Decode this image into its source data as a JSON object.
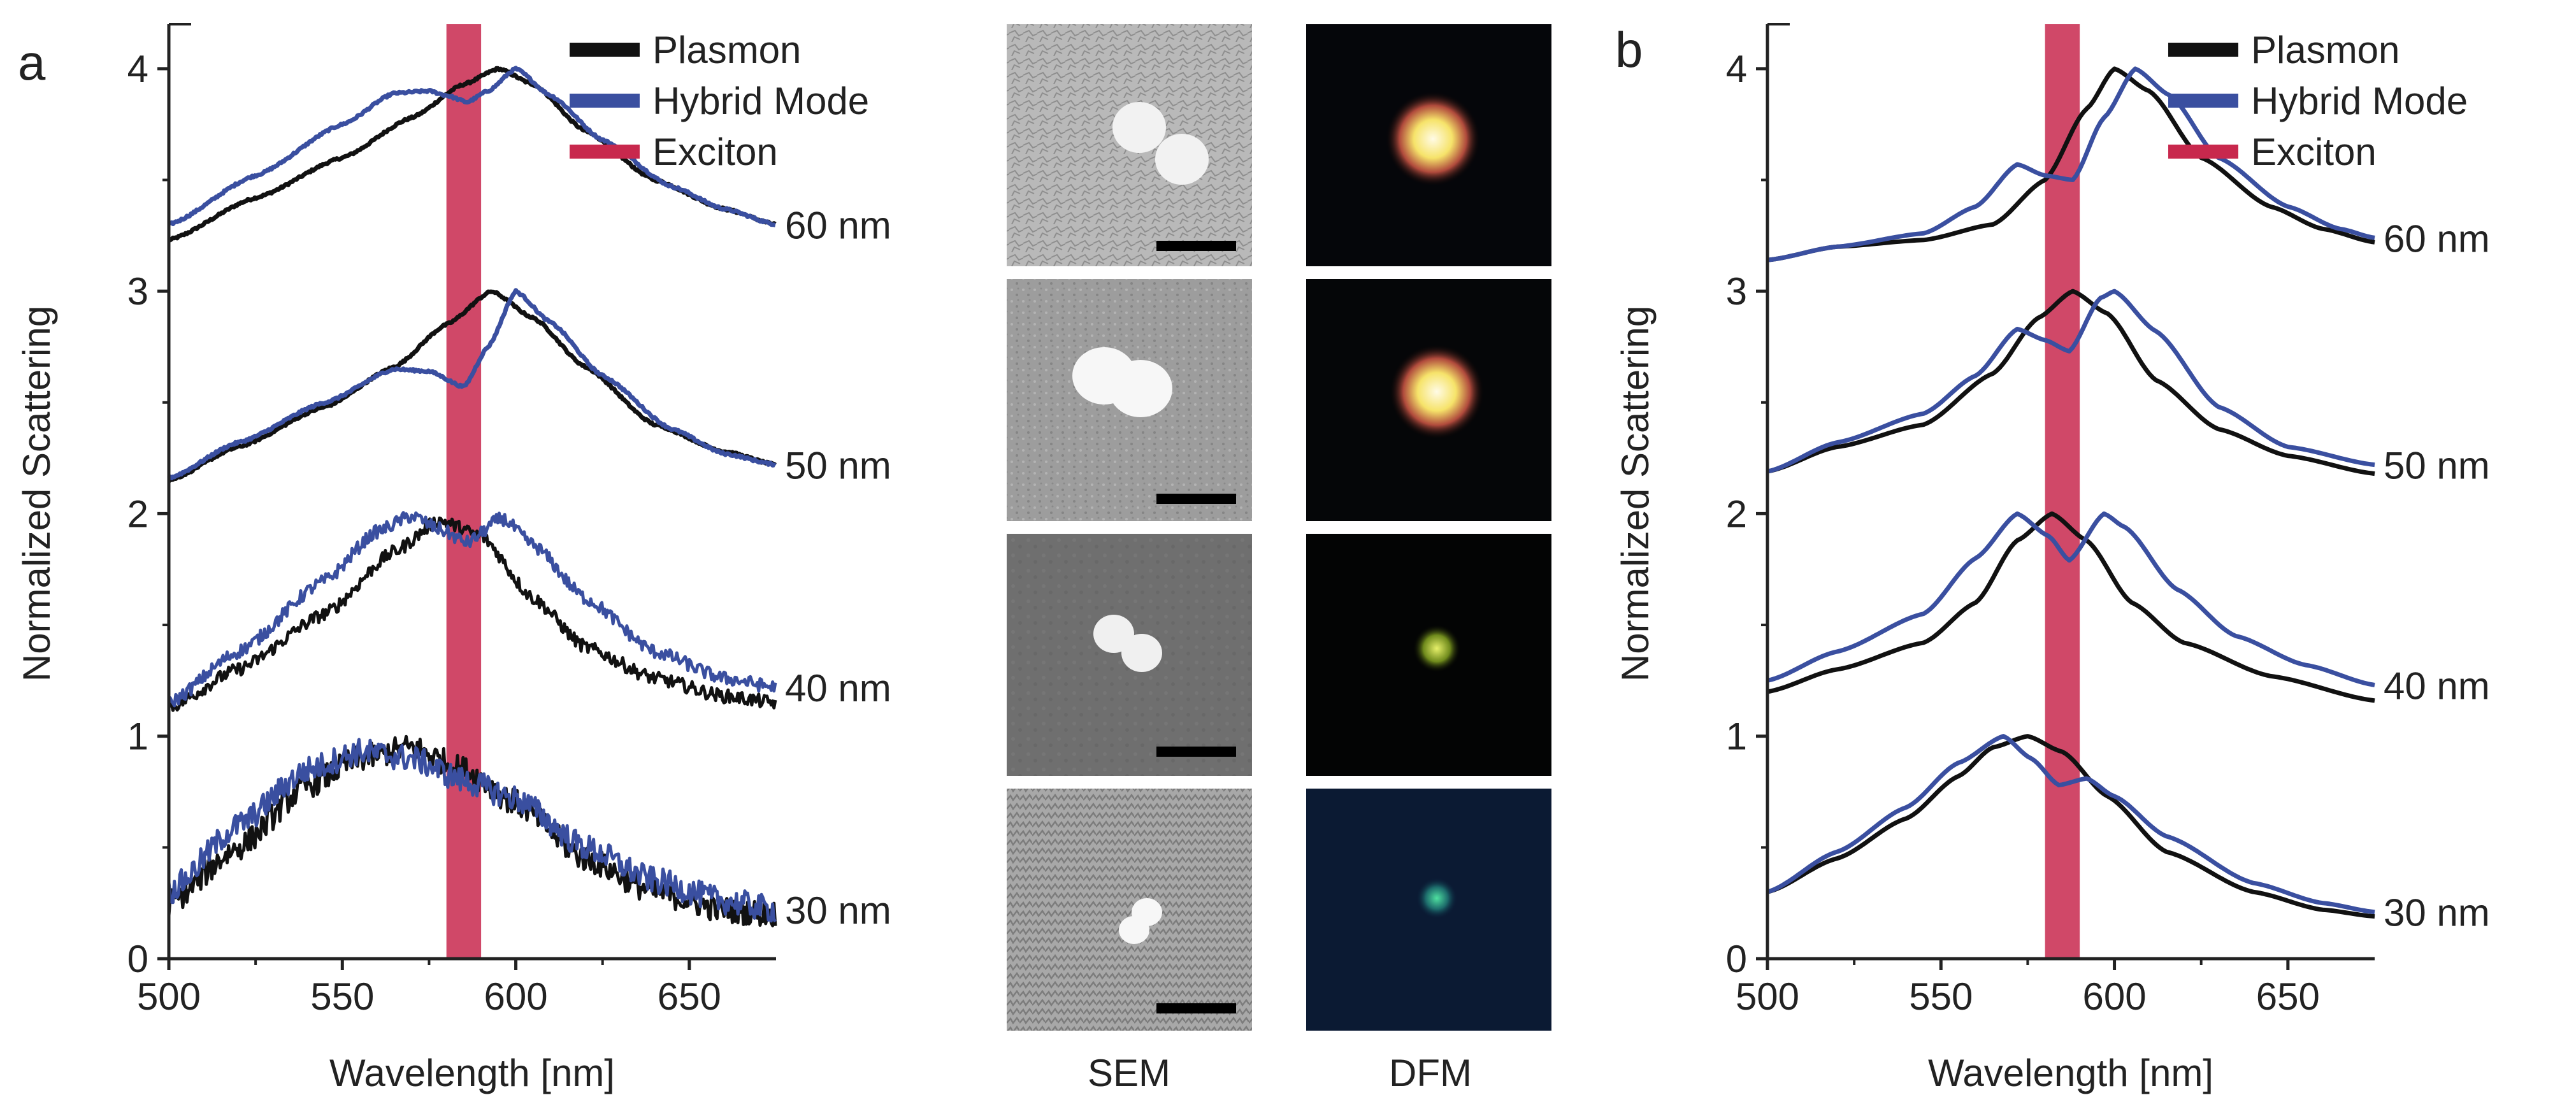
{
  "panel_labels": {
    "left": "a",
    "right": "b"
  },
  "image_column_labels": {
    "sem": "SEM",
    "dfm": "DFM"
  },
  "colors": {
    "plasmon": "#111111",
    "hybrid": "#3a4fa0",
    "exciton": "#c8284d"
  },
  "chart_data": [
    {
      "type": "line",
      "panel": "a",
      "xlabel": "Wavelength [nm]",
      "ylabel": "Normalized Scattering",
      "xlim": [
        500,
        675
      ],
      "ylim": [
        0,
        4.2
      ],
      "xticks": [
        500,
        550,
        600,
        650
      ],
      "yticks": [
        0,
        1,
        2,
        3,
        4
      ],
      "legend": {
        "placement": "top-right",
        "entries": [
          "Plasmon",
          "Hybrid Mode",
          "Exciton"
        ]
      },
      "exciton_band": [
        580,
        590
      ],
      "offset_labels": [
        "60 nm",
        "50 nm",
        "40 nm",
        "30 nm"
      ],
      "traces": [
        {
          "label": "60 nm",
          "baseline": 3.0,
          "noise": 0.005,
          "plasmon": [
            [
              500,
              3.23
            ],
            [
              525,
              3.42
            ],
            [
              550,
              3.6
            ],
            [
              570,
              3.78
            ],
            [
              585,
              3.93
            ],
            [
              595,
              4.0
            ],
            [
              605,
              3.93
            ],
            [
              620,
              3.72
            ],
            [
              640,
              3.5
            ],
            [
              660,
              3.37
            ],
            [
              675,
              3.3
            ]
          ],
          "hybrid": [
            [
              500,
              3.3
            ],
            [
              525,
              3.52
            ],
            [
              550,
              3.75
            ],
            [
              565,
              3.89
            ],
            [
              575,
              3.9
            ],
            [
              580,
              3.88
            ],
            [
              586,
              3.85
            ],
            [
              592,
              3.9
            ],
            [
              600,
              4.0
            ],
            [
              610,
              3.88
            ],
            [
              625,
              3.68
            ],
            [
              645,
              3.47
            ],
            [
              660,
              3.37
            ],
            [
              675,
              3.3
            ]
          ]
        },
        {
          "label": "50 nm",
          "baseline": 2.0,
          "noise": 0.005,
          "plasmon": [
            [
              500,
              2.15
            ],
            [
              520,
              2.3
            ],
            [
              545,
              2.48
            ],
            [
              565,
              2.66
            ],
            [
              580,
              2.85
            ],
            [
              593,
              3.0
            ],
            [
              605,
              2.88
            ],
            [
              620,
              2.66
            ],
            [
              640,
              2.4
            ],
            [
              660,
              2.28
            ],
            [
              675,
              2.22
            ]
          ],
          "hybrid": [
            [
              500,
              2.16
            ],
            [
              520,
              2.32
            ],
            [
              545,
              2.5
            ],
            [
              565,
              2.65
            ],
            [
              575,
              2.64
            ],
            [
              585,
              2.57
            ],
            [
              592,
              2.75
            ],
            [
              600,
              3.0
            ],
            [
              610,
              2.86
            ],
            [
              625,
              2.62
            ],
            [
              645,
              2.38
            ],
            [
              660,
              2.27
            ],
            [
              675,
              2.22
            ]
          ]
        },
        {
          "label": "40 nm",
          "baseline": 1.0,
          "noise": 0.03,
          "plasmon": [
            [
              500,
              1.13
            ],
            [
              520,
              1.3
            ],
            [
              545,
              1.55
            ],
            [
              565,
              1.83
            ],
            [
              578,
              1.97
            ],
            [
              590,
              1.9
            ],
            [
              605,
              1.62
            ],
            [
              620,
              1.4
            ],
            [
              640,
              1.26
            ],
            [
              660,
              1.18
            ],
            [
              675,
              1.15
            ]
          ],
          "hybrid": [
            [
              500,
              1.15
            ],
            [
              520,
              1.38
            ],
            [
              545,
              1.7
            ],
            [
              560,
              1.92
            ],
            [
              570,
              1.99
            ],
            [
              578,
              1.93
            ],
            [
              586,
              1.87
            ],
            [
              596,
              1.98
            ],
            [
              605,
              1.86
            ],
            [
              620,
              1.62
            ],
            [
              640,
              1.38
            ],
            [
              660,
              1.26
            ],
            [
              675,
              1.22
            ]
          ]
        },
        {
          "label": "30 nm",
          "baseline": 0.0,
          "noise": 0.06,
          "plasmon": [
            [
              500,
              0.25
            ],
            [
              520,
              0.5
            ],
            [
              540,
              0.78
            ],
            [
              555,
              0.9
            ],
            [
              570,
              0.95
            ],
            [
              585,
              0.85
            ],
            [
              600,
              0.7
            ],
            [
              620,
              0.45
            ],
            [
              640,
              0.3
            ],
            [
              660,
              0.22
            ],
            [
              675,
              0.2
            ]
          ],
          "hybrid": [
            [
              500,
              0.3
            ],
            [
              520,
              0.6
            ],
            [
              540,
              0.85
            ],
            [
              555,
              0.93
            ],
            [
              570,
              0.9
            ],
            [
              585,
              0.8
            ],
            [
              600,
              0.72
            ],
            [
              620,
              0.5
            ],
            [
              640,
              0.35
            ],
            [
              660,
              0.26
            ],
            [
              675,
              0.22
            ]
          ]
        }
      ]
    },
    {
      "type": "line",
      "panel": "b",
      "xlabel": "Wavelength [nm]",
      "ylabel": "Normalized Scattering",
      "xlim": [
        500,
        675
      ],
      "ylim": [
        0,
        4.2
      ],
      "xticks": [
        500,
        550,
        600,
        650
      ],
      "yticks": [
        0,
        1,
        2,
        3,
        4
      ],
      "legend": {
        "placement": "top-right",
        "entries": [
          "Plasmon",
          "Hybrid Mode",
          "Exciton"
        ]
      },
      "exciton_band": [
        580,
        590
      ],
      "offset_labels": [
        "60 nm",
        "50 nm",
        "40 nm",
        "30 nm"
      ],
      "traces": [
        {
          "label": "60 nm",
          "baseline": 3.0,
          "noise": 0,
          "plasmon": [
            [
              500,
              3.14
            ],
            [
              520,
              3.2
            ],
            [
              545,
              3.23
            ],
            [
              565,
              3.3
            ],
            [
              580,
              3.5
            ],
            [
              592,
              3.82
            ],
            [
              600,
              4.0
            ],
            [
              610,
              3.9
            ],
            [
              625,
              3.6
            ],
            [
              645,
              3.38
            ],
            [
              660,
              3.28
            ],
            [
              675,
              3.22
            ]
          ],
          "hybrid": [
            [
              500,
              3.14
            ],
            [
              520,
              3.2
            ],
            [
              545,
              3.26
            ],
            [
              560,
              3.38
            ],
            [
              572,
              3.57
            ],
            [
              580,
              3.52
            ],
            [
              588,
              3.5
            ],
            [
              597,
              3.78
            ],
            [
              606,
              4.0
            ],
            [
              616,
              3.88
            ],
            [
              630,
              3.6
            ],
            [
              650,
              3.38
            ],
            [
              665,
              3.28
            ],
            [
              675,
              3.24
            ]
          ]
        },
        {
          "label": "50 nm",
          "baseline": 2.0,
          "noise": 0,
          "plasmon": [
            [
              500,
              2.19
            ],
            [
              520,
              2.3
            ],
            [
              545,
              2.4
            ],
            [
              565,
              2.63
            ],
            [
              578,
              2.88
            ],
            [
              588,
              3.0
            ],
            [
              598,
              2.9
            ],
            [
              612,
              2.6
            ],
            [
              630,
              2.38
            ],
            [
              650,
              2.26
            ],
            [
              675,
              2.18
            ]
          ],
          "hybrid": [
            [
              500,
              2.19
            ],
            [
              520,
              2.32
            ],
            [
              545,
              2.45
            ],
            [
              560,
              2.62
            ],
            [
              572,
              2.83
            ],
            [
              580,
              2.78
            ],
            [
              587,
              2.73
            ],
            [
              596,
              2.97
            ],
            [
              600,
              3.0
            ],
            [
              612,
              2.82
            ],
            [
              630,
              2.48
            ],
            [
              650,
              2.3
            ],
            [
              675,
              2.22
            ]
          ]
        },
        {
          "label": "40 nm",
          "baseline": 1.0,
          "noise": 0,
          "plasmon": [
            [
              500,
              1.2
            ],
            [
              520,
              1.3
            ],
            [
              545,
              1.42
            ],
            [
              560,
              1.6
            ],
            [
              572,
              1.88
            ],
            [
              582,
              2.0
            ],
            [
              592,
              1.88
            ],
            [
              605,
              1.6
            ],
            [
              620,
              1.42
            ],
            [
              645,
              1.27
            ],
            [
              675,
              1.16
            ]
          ],
          "hybrid": [
            [
              500,
              1.25
            ],
            [
              520,
              1.38
            ],
            [
              545,
              1.55
            ],
            [
              560,
              1.8
            ],
            [
              572,
              2.0
            ],
            [
              581,
              1.9
            ],
            [
              587,
              1.79
            ],
            [
              597,
              2.0
            ],
            [
              603,
              1.94
            ],
            [
              618,
              1.66
            ],
            [
              635,
              1.45
            ],
            [
              655,
              1.32
            ],
            [
              675,
              1.23
            ]
          ]
        },
        {
          "label": "30 nm",
          "baseline": 0.0,
          "noise": 0,
          "plasmon": [
            [
              500,
              0.3
            ],
            [
              520,
              0.45
            ],
            [
              540,
              0.63
            ],
            [
              555,
              0.82
            ],
            [
              565,
              0.95
            ],
            [
              575,
              1.0
            ],
            [
              585,
              0.93
            ],
            [
              598,
              0.73
            ],
            [
              615,
              0.48
            ],
            [
              640,
              0.3
            ],
            [
              660,
              0.22
            ],
            [
              675,
              0.19
            ]
          ],
          "hybrid": [
            [
              500,
              0.3
            ],
            [
              520,
              0.48
            ],
            [
              540,
              0.68
            ],
            [
              555,
              0.88
            ],
            [
              568,
              1.0
            ],
            [
              576,
              0.9
            ],
            [
              584,
              0.78
            ],
            [
              592,
              0.81
            ],
            [
              600,
              0.73
            ],
            [
              615,
              0.55
            ],
            [
              640,
              0.34
            ],
            [
              660,
              0.25
            ],
            [
              675,
              0.21
            ]
          ]
        }
      ]
    }
  ]
}
